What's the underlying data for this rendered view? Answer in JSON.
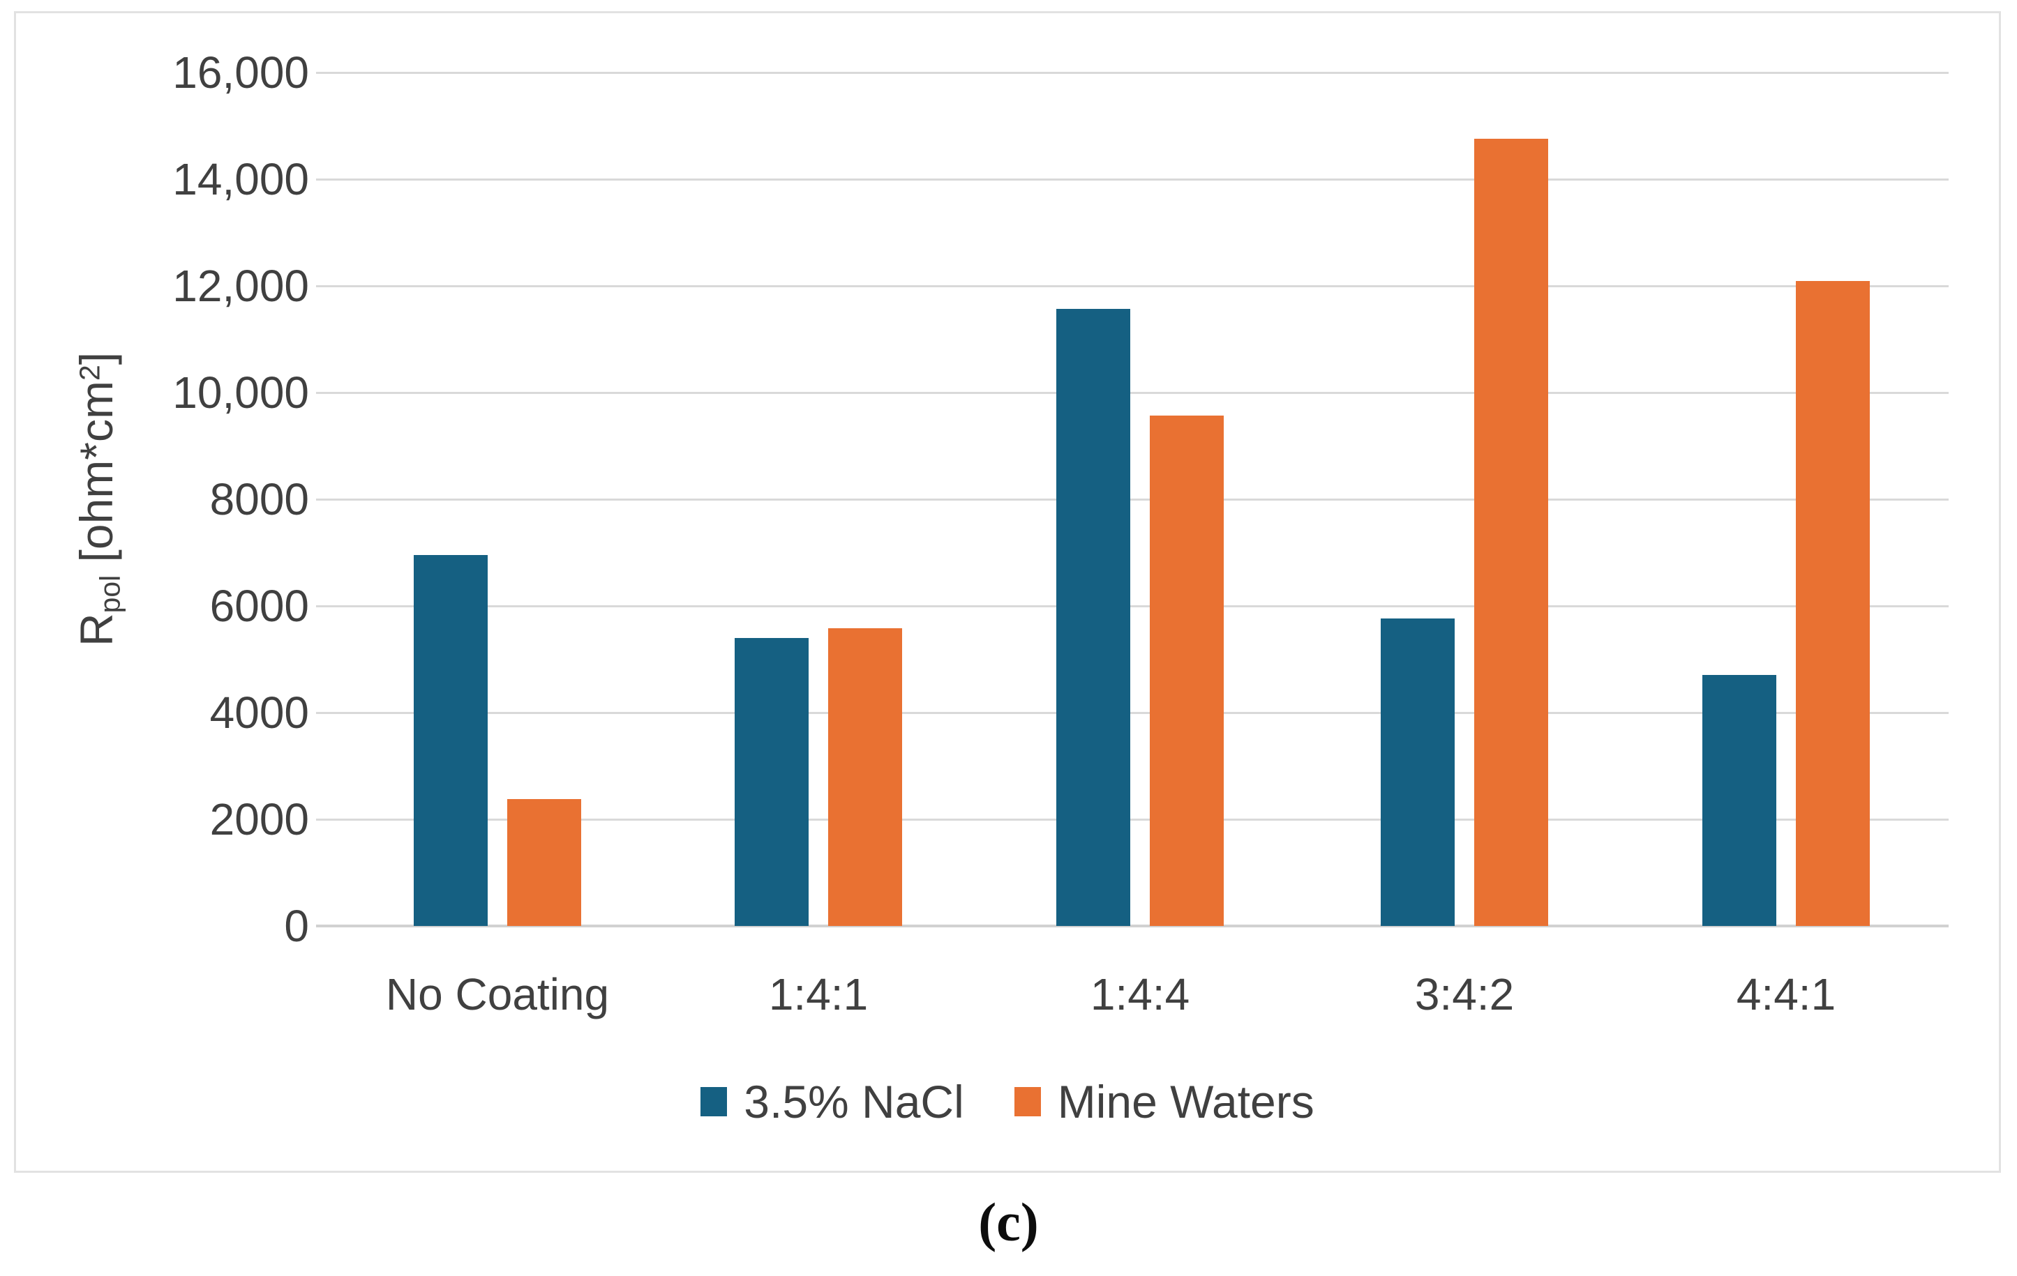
{
  "caption": {
    "text": "(c)"
  },
  "y_axis_title": {
    "base": "R",
    "subscript": "pol",
    "middle": " [ohm*cm",
    "superscript": "2",
    "end": "]"
  },
  "colors": {
    "series_nacl": "#156082",
    "series_mine_waters": "#E97132",
    "gridline": "#d9d9d9",
    "axis_text": "#404040",
    "chart_border": "#e2e2e2"
  },
  "chart_data": {
    "type": "bar",
    "title": "",
    "xlabel": "",
    "ylabel": "Rpol [ohm*cm2]",
    "categories": [
      "No Coating",
      "1:4:1",
      "1:4:4",
      "3:4:2",
      "4:4:1"
    ],
    "series": [
      {
        "name": "3.5% NaCl",
        "color": "#156082",
        "values": [
          6950,
          5400,
          11570,
          5770,
          4700
        ]
      },
      {
        "name": "Mine Waters",
        "color": "#E97132",
        "values": [
          2380,
          5580,
          9570,
          14760,
          12090
        ]
      }
    ],
    "ylim": [
      0,
      16000
    ],
    "yticks": [
      {
        "value": 0,
        "label": "0"
      },
      {
        "value": 2000,
        "label": "2000"
      },
      {
        "value": 4000,
        "label": "4000"
      },
      {
        "value": 6000,
        "label": "6000"
      },
      {
        "value": 8000,
        "label": "8000"
      },
      {
        "value": 10000,
        "label": "10,000"
      },
      {
        "value": 12000,
        "label": "12,000"
      },
      {
        "value": 14000,
        "label": "14,000"
      },
      {
        "value": 16000,
        "label": "16,000"
      }
    ],
    "grid": "horizontal",
    "legend_position": "bottom"
  }
}
